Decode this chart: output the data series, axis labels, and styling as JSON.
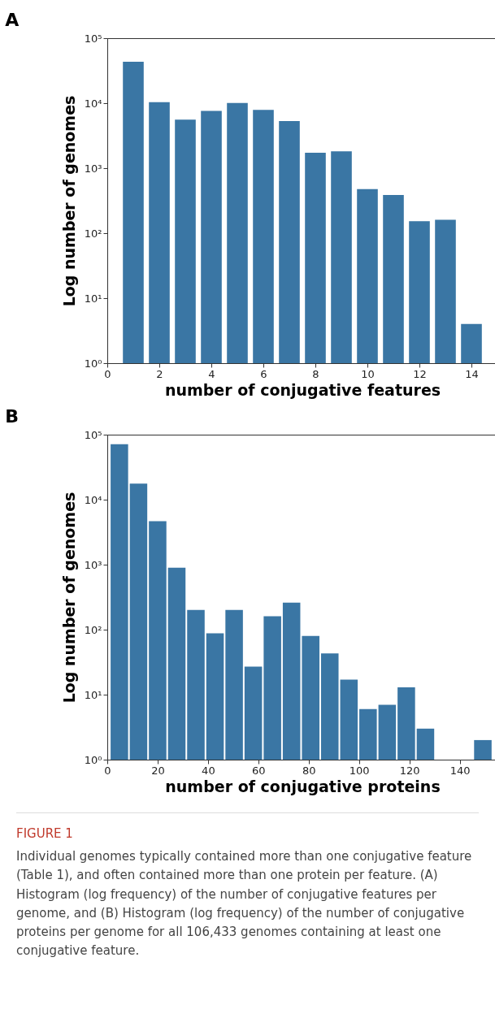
{
  "chart_data": [
    {
      "type": "bar",
      "title": "A",
      "xlabel": "number of conjugative features",
      "ylabel": "Log number of genomes",
      "x": [
        1,
        2,
        3,
        4,
        5,
        6,
        7,
        8,
        9,
        10,
        11,
        12,
        13,
        14
      ],
      "values": [
        43500,
        10400,
        5580,
        7590,
        10100,
        7910,
        5300,
        1730,
        1820,
        475,
        386,
        153,
        161,
        4
      ],
      "color": "#3a76a4",
      "log": true,
      "xlim": [
        0,
        15
      ],
      "xticks": [
        0,
        2,
        4,
        6,
        8,
        10,
        12,
        14
      ],
      "ylim": [
        1,
        100000
      ],
      "yticks": [
        {
          "value": 1,
          "label": "10⁰"
        },
        {
          "value": 10,
          "label": "10¹"
        },
        {
          "value": 100,
          "label": "10²"
        },
        {
          "value": 1000,
          "label": "10³"
        },
        {
          "value": 10000,
          "label": "10⁴"
        },
        {
          "value": 100000,
          "label": "10⁵"
        }
      ],
      "grid": false
    },
    {
      "type": "histogram",
      "title": "B",
      "xlabel": "number of conjugative proteins",
      "ylabel": "Log number of genomes",
      "bins": [
        1,
        8.6,
        16.2,
        23.8,
        31.4,
        39,
        46.6,
        54.2,
        61.8,
        69.4,
        77,
        84.6,
        92.2,
        99.8,
        107.4,
        115,
        122.6,
        130.2,
        137.8,
        145.4,
        153
      ],
      "values": [
        71300,
        17700,
        4650,
        900,
        201,
        88,
        201,
        27,
        161,
        260,
        80,
        43,
        17,
        6,
        7,
        13,
        3,
        1,
        1,
        2
      ],
      "color": "#3a76a4",
      "log": true,
      "xlim": [
        0,
        155
      ],
      "xticks": [
        0,
        20,
        40,
        60,
        80,
        100,
        120,
        140
      ],
      "ylim": [
        1,
        100000
      ],
      "yticks": [
        {
          "value": 1,
          "label": "10⁰"
        },
        {
          "value": 10,
          "label": "10¹"
        },
        {
          "value": 100,
          "label": "10²"
        },
        {
          "value": 1000,
          "label": "10³"
        },
        {
          "value": 10000,
          "label": "10⁴"
        },
        {
          "value": 100000,
          "label": "10⁵"
        }
      ],
      "grid": false,
      "annotations": [
        "FIGURE 1",
        "Individual genomes typically contained more than one conjugative feature (Table 1), and often contained more than one protein per feature. (A) Histogram (log frequency) of the number of conjugative features per genome, and (B) Histogram (log frequency) of the number of conjugative proteins per genome for all 106,433 genomes containing at least one conjugative feature."
      ]
    }
  ]
}
